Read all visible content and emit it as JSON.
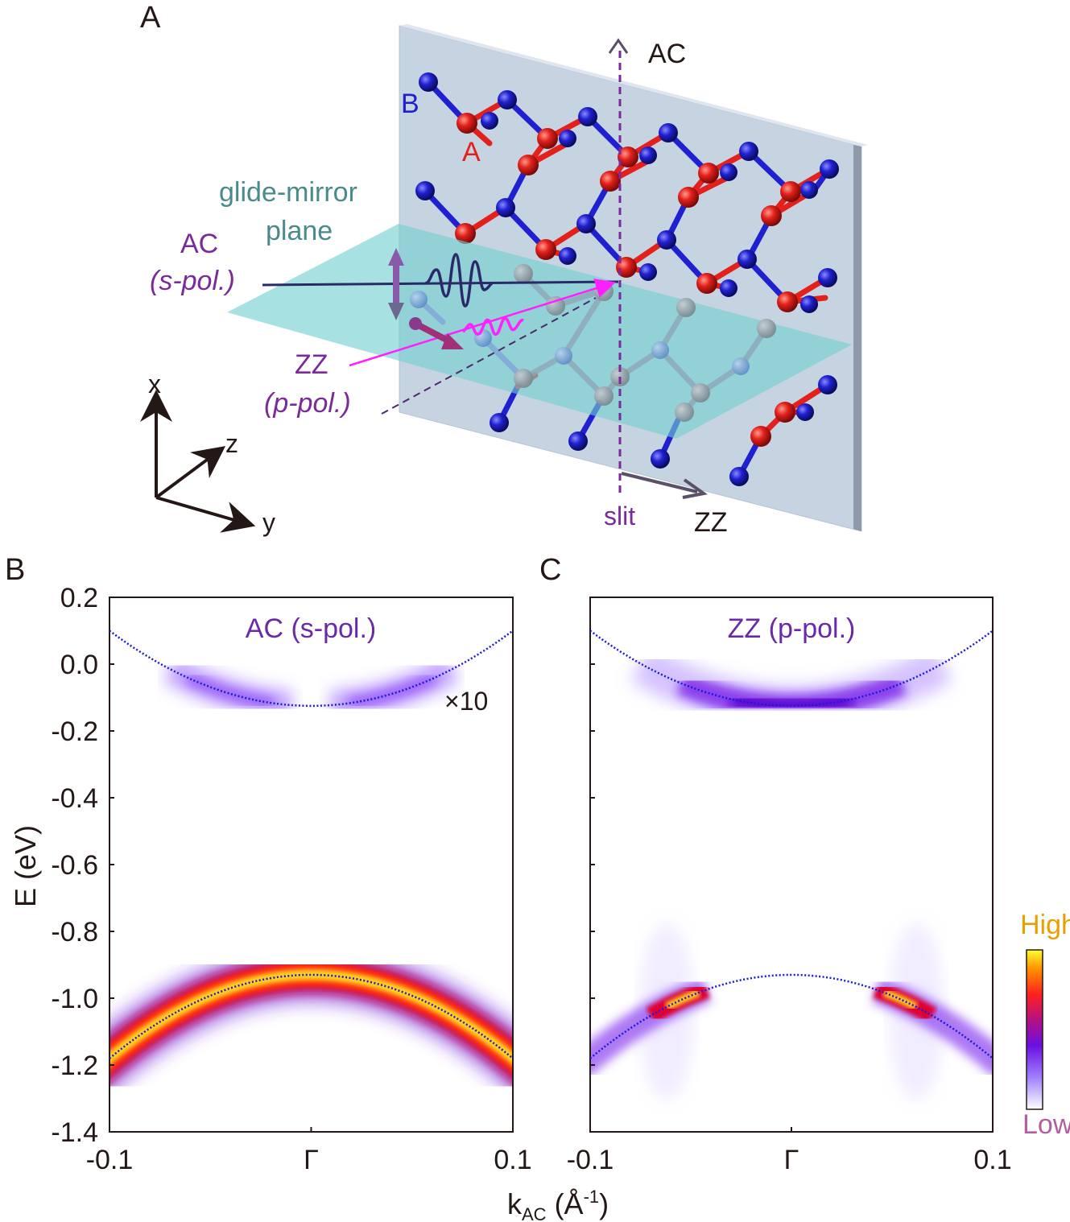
{
  "panel_a": {
    "label": "A",
    "atom_b_label": "B",
    "atom_a_label": "A",
    "ac_axis_label": "AC",
    "zz_axis_label": "ZZ",
    "slit_label": "slit",
    "glide_label_line1": "glide-mirror",
    "glide_label_line2": "plane",
    "ac_pol_line1": "AC",
    "ac_pol_line2": "(s-pol.)",
    "zz_pol_line1": "ZZ",
    "zz_pol_line2": "(p-pol.)",
    "coord_x": "x",
    "coord_y": "y",
    "coord_z": "z"
  },
  "panel_b": {
    "label": "B",
    "title": "AC (s-pol.)",
    "scale_note": "×10"
  },
  "panel_c": {
    "label": "C",
    "title": "ZZ (p-pol.)"
  },
  "axes": {
    "ylabel": "E (eV)",
    "xlabel_main": "k",
    "xlabel_sub": "AC",
    "xlabel_unit_open": " (Å",
    "xlabel_unit_sup": "-1",
    "xlabel_unit_close": ")"
  },
  "colorbar": {
    "high_label": "High",
    "low_label": "Low"
  },
  "colors": {
    "atom_a": "#e3201b",
    "atom_b": "#2020d0",
    "glide_text": "#4a8a8a",
    "pol_text": "#7a2a9a",
    "fit_line": "#1a1ae0",
    "high_text": "#e8a000",
    "low_text": "#b060a0"
  },
  "chart_data": [
    {
      "type": "heatmap",
      "title": "AC (s-pol.)",
      "annotation": "×10",
      "xlabel": "k_AC (Å^-1)",
      "ylabel": "E (eV)",
      "xlim": [
        -0.1,
        0.1
      ],
      "ylim": [
        -1.4,
        0.2
      ],
      "x_ticks": [
        "-0.1",
        "Γ",
        "0.1"
      ],
      "y_ticks": [
        "0.2",
        "0.0",
        "-0.2",
        "-0.4",
        "-0.6",
        "-0.8",
        "-1.0",
        "-1.2",
        "-1.4"
      ],
      "conduction_band_fit": {
        "vertex_k": 0.0,
        "vertex_E": -0.125,
        "E_at_edge": 0.1
      },
      "valence_band_fit": {
        "vertex_k": 0.0,
        "vertex_E": -0.93,
        "E_at_edge": -1.18
      },
      "intensity": {
        "conduction": "weak lobes at k ≈ ±0.035, suppressed at Γ",
        "valence": "strong, continuous along whole band"
      }
    },
    {
      "type": "heatmap",
      "title": "ZZ (p-pol.)",
      "xlabel": "k_AC (Å^-1)",
      "ylabel": "E (eV)",
      "xlim": [
        -0.1,
        0.1
      ],
      "ylim": [
        -1.4,
        0.2
      ],
      "x_ticks": [
        "-0.1",
        "Γ",
        "0.1"
      ],
      "y_ticks": [
        "0.2",
        "0.0",
        "-0.2",
        "-0.4",
        "-0.6",
        "-0.8",
        "-1.0",
        "-1.2",
        "-1.4"
      ],
      "conduction_band_fit": {
        "vertex_k": 0.0,
        "vertex_E": -0.125,
        "E_at_edge": 0.1
      },
      "valence_band_fit": {
        "vertex_k": 0.0,
        "vertex_E": -0.93,
        "E_at_edge": -1.18
      },
      "intensity": {
        "conduction": "strong near Γ",
        "valence": "strong at |k| ≈ 0.03–0.1, suppressed near Γ"
      }
    }
  ]
}
